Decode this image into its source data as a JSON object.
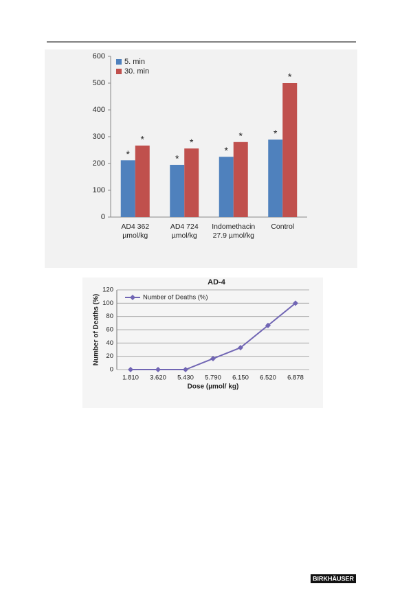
{
  "chart_data": [
    {
      "type": "bar",
      "categories": [
        "AD4 362\nµmol/kg",
        "AD4 724\nµmol/kg",
        "Indomethacin\n27.9 µmol/kg",
        "Control"
      ],
      "series": [
        {
          "name": "5. min",
          "color": "#4f81bd",
          "values": [
            212,
            195,
            225,
            289
          ],
          "significance": [
            "*",
            "*",
            "*",
            "*"
          ]
        },
        {
          "name": "30. min",
          "color": "#c0504d",
          "values": [
            267,
            256,
            280,
            500
          ],
          "significance": [
            "*",
            "*",
            "*",
            "*"
          ]
        }
      ],
      "ylim": [
        0,
        600
      ],
      "yticks": [
        0,
        100,
        200,
        300,
        400,
        500,
        600
      ],
      "grid": false,
      "legend": "top-left"
    },
    {
      "type": "line",
      "title": "AD-4",
      "categories": [
        "1.810",
        "3.620",
        "5.430",
        "5.790",
        "6.150",
        "6.520",
        "6.878"
      ],
      "series": [
        {
          "name": "Number of Deaths (%)",
          "color": "#7166b4",
          "values": [
            0,
            0,
            0,
            16.5,
            33,
            66.5,
            100
          ]
        }
      ],
      "xlabel": "Dose (µmol/ kg)",
      "ylabel": "Number of Deaths (%)",
      "ylim": [
        0,
        120
      ],
      "yticks": [
        0,
        20,
        40,
        60,
        80,
        100,
        120
      ],
      "grid": true,
      "legend": "top-left"
    }
  ],
  "footer": {
    "publisher": "BIRKHÄUSER"
  }
}
